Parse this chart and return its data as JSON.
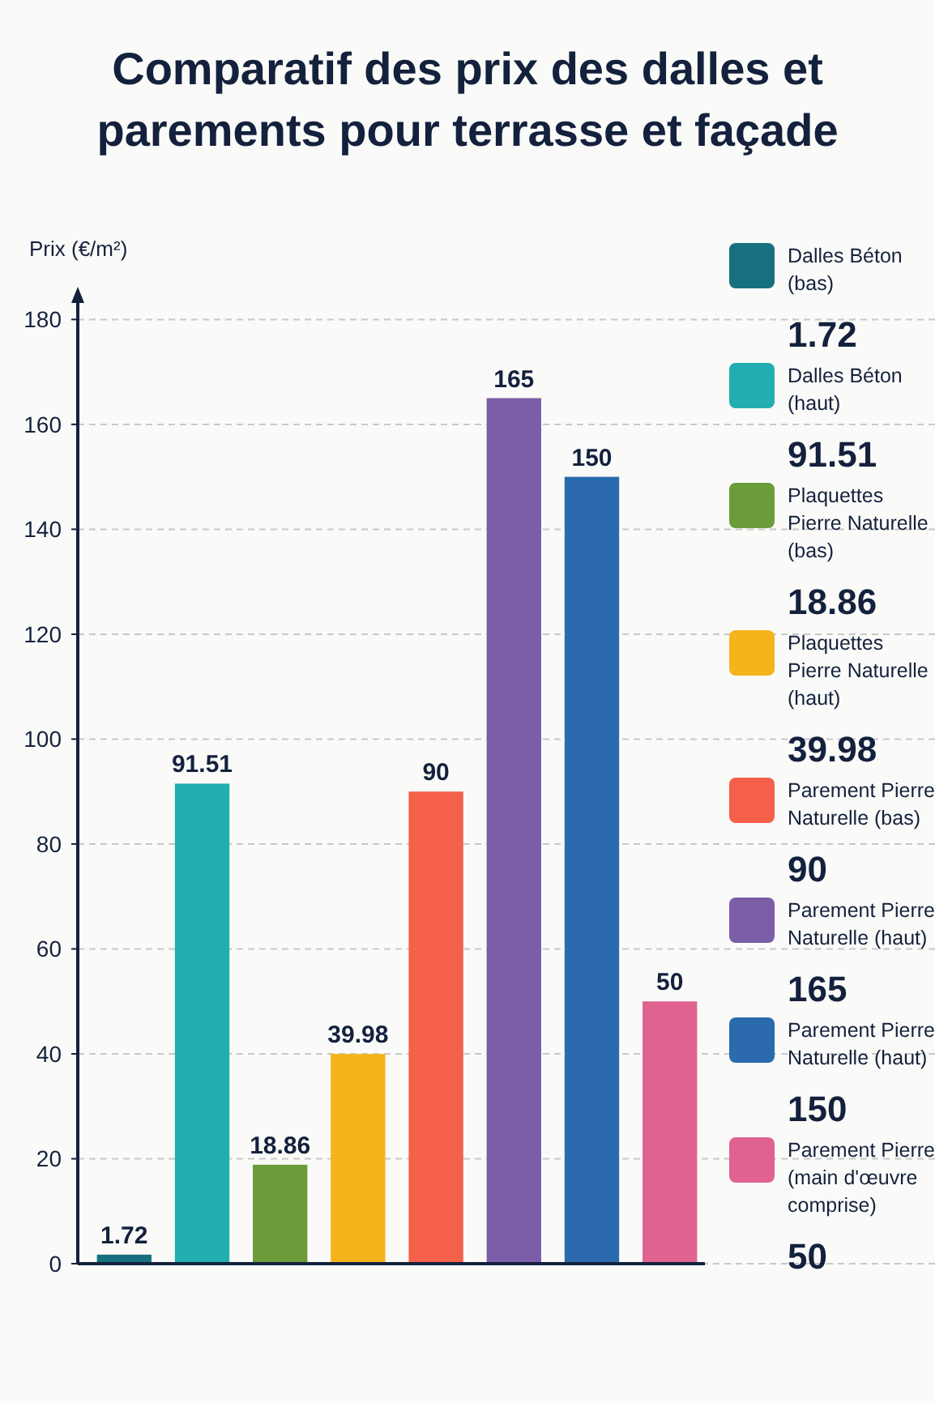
{
  "chart_data": {
    "type": "bar",
    "title": "Comparatif des prix des dalles et parements pour terrasse et façade",
    "ylabel": "Prix (€/m²)",
    "categories": [
      null,
      null,
      null,
      null,
      null,
      null,
      null,
      null
    ],
    "series": [
      {
        "name": "Dalles Béton (bas)",
        "color": "#17707f",
        "values": [
          1.72,
          null,
          null,
          null,
          null,
          null,
          null,
          null
        ]
      },
      {
        "name": "Dalles Béton (haut)",
        "color": "#22aeb0",
        "values": [
          null,
          91.51,
          null,
          null,
          null,
          null,
          null,
          null
        ]
      },
      {
        "name": "Plaquettes Pierre Naturelle (bas)",
        "color": "#6c9b3a",
        "values": [
          null,
          null,
          18.86,
          null,
          null,
          null,
          null,
          null
        ]
      },
      {
        "name": "Plaquettes Pierre Naturelle (haut)",
        "color": "#f5b31c",
        "values": [
          null,
          null,
          null,
          39.98,
          null,
          null,
          null,
          null
        ]
      },
      {
        "name": "Parement Pierre Naturelle (bas)",
        "color": "#f4604a",
        "values": [
          null,
          null,
          null,
          null,
          90,
          null,
          null,
          null
        ]
      },
      {
        "name": "Parement Pierre Naturelle (haut)",
        "color": "#7b5ea7",
        "values": [
          null,
          null,
          null,
          null,
          null,
          165,
          null,
          null
        ]
      },
      {
        "name": "Parement Pierre Naturelle (haut)",
        "color": "#2a6aad",
        "values": [
          null,
          null,
          null,
          null,
          null,
          null,
          150,
          null
        ]
      },
      {
        "name": "Parement Pierre (main d'œuvre comprise)",
        "color": "#e06290",
        "values": [
          null,
          null,
          null,
          null,
          null,
          null,
          null,
          50
        ]
      }
    ],
    "stacked": true,
    "ylim": [
      0,
      185
    ],
    "yticks": [
      0,
      20,
      40,
      60,
      80,
      100,
      120,
      140,
      160,
      180
    ],
    "annotations": [
      "1.72",
      "91.51",
      "18.86",
      "39.98",
      "90",
      "165",
      "150",
      "50"
    ],
    "grid": "y",
    "legend": "right",
    "data_labels": true,
    "tick_labels": "y"
  }
}
